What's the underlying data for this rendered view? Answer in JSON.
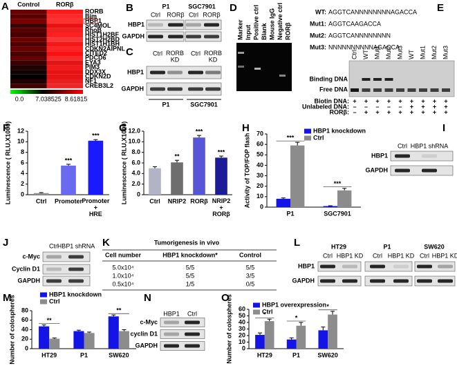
{
  "panel_letters": [
    "A",
    "B",
    "C",
    "D",
    "E",
    "F",
    "G",
    "H",
    "I",
    "J",
    "K",
    "L",
    "M",
    "N",
    "O"
  ],
  "heatmap": {
    "columns": [
      "Control",
      "RORβ"
    ],
    "genes": [
      "RORB",
      "Bim",
      "HBP1",
      "SC4MOL",
      "RhoB",
      "HIST1H2BF",
      "HIST2H2BD",
      "HIST1H1BH",
      "CDKN2AIPNL",
      "CITED2",
      "PDCD6",
      "EYA3",
      "PIM3",
      "DDX3X",
      "CDKN2D",
      "NF1",
      "CREB3L2"
    ],
    "colors": [
      [
        "#6a0000",
        "#ff1a1a"
      ],
      [
        "#5a0000",
        "#ff2a2a"
      ],
      [
        "#7a0000",
        "#ff3030"
      ],
      [
        "#3a0000",
        "#e81010"
      ],
      [
        "#5a0000",
        "#f02020"
      ],
      [
        "#4a0000",
        "#ff2020"
      ],
      [
        "#6a0000",
        "#ff3535"
      ],
      [
        "#500000",
        "#f51818"
      ],
      [
        "#6a0000",
        "#ff2525"
      ],
      [
        "#4a0000",
        "#ff1010"
      ],
      [
        "#600000",
        "#f52a2a"
      ],
      [
        "#3a0000",
        "#e01515"
      ],
      [
        "#200000",
        "#f01a1a"
      ],
      [
        "#100000",
        "#e81010"
      ],
      [
        "#000000",
        "#e51515"
      ],
      [
        "#200000",
        "#e82020"
      ],
      [
        "#400000",
        "#f02525"
      ]
    ],
    "scale_labels": [
      "0.0",
      "7.038525",
      "8.61815"
    ]
  },
  "blots": {
    "B": {
      "headers": [
        "P1",
        "SGC7901"
      ],
      "lanes": [
        "Ctrl",
        "RORβ",
        "Ctrl",
        "RORβ"
      ],
      "rows": [
        "HBP1",
        "GAPDH"
      ]
    },
    "C": {
      "lanes": [
        "Ctrl",
        "RORB\nKD",
        "Ctrl",
        "RORB\nKD"
      ],
      "rows": [
        "HBP1",
        "GAPDH"
      ],
      "footers": [
        "P1",
        "SGC7901"
      ]
    },
    "I": {
      "lanes": [
        "Ctrl",
        "HBP1 shRNA"
      ],
      "rows": [
        "HBP1",
        "GAPDH"
      ]
    },
    "J": {
      "lanes": [
        "Ctrl",
        "HBP1 shRNA"
      ],
      "rows": [
        "c-Myc",
        "Cyclin D1",
        "GAPDH"
      ]
    },
    "L": {
      "headers": [
        "HT29",
        "P1",
        "SW620"
      ],
      "lanes": [
        "Ctrl",
        "HBP1 KD",
        "Ctrl",
        "HBP1 KD",
        "Ctrl",
        "HBP1 KD"
      ],
      "rows": [
        "HBP1",
        "GAPDH"
      ]
    },
    "N": {
      "lanes": [
        "HBP1",
        "Ctrl"
      ],
      "rows": [
        "c-Myc",
        "cyclin D1",
        "GAPDH"
      ]
    }
  },
  "gel_D": {
    "lanes": [
      "Marker",
      "Input",
      "Positive ctrl",
      "Blank",
      "Mouse IgG",
      "Negative ctrl",
      "RORβ"
    ]
  },
  "emsa_E": {
    "probes": [
      {
        "name": "WT:",
        "sequence": "AGGTCANNNNNNNNAGACCA"
      },
      {
        "name": "Mut1:",
        "sequence": "AGGTCAAGACCA"
      },
      {
        "name": "Mut2:",
        "sequence": "AGGTCANNNNNNNN"
      },
      {
        "name": "Mut3:",
        "sequence": "NNNNNNNNNNAGACCA"
      }
    ],
    "lanes": [
      "Ctrl",
      "WT",
      "Mut1",
      "Mut2",
      "Mut3",
      "WT",
      "Mut1",
      "Mut2",
      "Mut3"
    ],
    "bands": [
      "Binding DNA",
      "Free DNA"
    ],
    "conditions": [
      {
        "label": "Biotin DNA:",
        "signs": [
          "+",
          "+",
          "+",
          "+",
          "+",
          "+",
          "+",
          "+",
          "+"
        ]
      },
      {
        "label": "Unlabeled DNA:",
        "signs": [
          "–",
          "–",
          "–",
          "–",
          "–",
          "+",
          "+",
          "+",
          "+"
        ]
      },
      {
        "label": "RORβ:",
        "signs": [
          "–",
          "+",
          "+",
          "+",
          "+",
          "+",
          "+",
          "+",
          "+"
        ]
      }
    ]
  },
  "table_K": {
    "title": "Tumorigenesis in vivo",
    "header": [
      "Cell number",
      "HBP1 knockdown*",
      "Control"
    ],
    "rows": [
      [
        "5.0x10⁴",
        "5/5",
        "5/5"
      ],
      [
        "1.0x10⁴",
        "5/5",
        "3/5"
      ],
      [
        "0.5x10⁴",
        "1/5",
        "0/5"
      ]
    ]
  },
  "chart_data": [
    {
      "type": "bar",
      "ylabel": "Luminescence ( RLU,X1000)",
      "categories": [
        "Ctrl",
        "Promoter",
        "Promoter\n+\nHRE"
      ],
      "values": [
        0.3,
        5.5,
        10.2
      ],
      "errors": [
        0.1,
        0.25,
        0.2
      ],
      "colors": [
        "#8f8f8f",
        "#6a6af0",
        "#1a1aff"
      ],
      "annotations": [
        null,
        "***",
        "***"
      ],
      "ylim": [
        0,
        12
      ],
      "yticks": [
        0,
        2,
        4,
        6,
        8,
        10,
        12
      ]
    },
    {
      "type": "bar",
      "ylabel": "Luminescence ( RLU,X1000)",
      "categories": [
        "Ctrl",
        "NRIP2",
        "RORβ",
        "NRIP2\n+\nRORβ"
      ],
      "values": [
        5.0,
        6.1,
        10.8,
        7.0
      ],
      "errors": [
        0.3,
        0.4,
        0.4,
        0.3
      ],
      "colors": [
        "#b3b3c6",
        "#6e6e6e",
        "#5656d6",
        "#1c1c96"
      ],
      "annotations": [
        null,
        "**",
        "***",
        "***"
      ],
      "ylim": [
        0,
        12
      ],
      "yticks": [
        0,
        {
          "value": 2,
          "label": "2.0"
        },
        {
          "value": 4,
          "label": "4.0"
        },
        {
          "value": 6,
          "label": "6.0"
        },
        {
          "value": 8,
          "label": "8.0"
        },
        {
          "value": 10,
          "label": "10.0"
        },
        {
          "value": 12,
          "label": "12.0"
        }
      ]
    },
    {
      "type": "grouped_bar",
      "ylabel": "Activity of TOP/FOP flash",
      "categories": [
        "P1",
        "SGC7901"
      ],
      "series": [
        {
          "name": "HBP1 knockdown",
          "color": "#1414e6",
          "values": [
            8,
            1
          ],
          "errors": [
            0.8,
            0.3
          ]
        },
        {
          "name": "Ctrl",
          "color": "#8c8c8c",
          "values": [
            59,
            16
          ],
          "errors": [
            3,
            2
          ]
        }
      ],
      "annotations": [
        "***",
        "***"
      ],
      "ylim": [
        0,
        70
      ],
      "yticks": [
        0,
        10,
        20,
        30,
        40,
        50,
        60,
        70
      ]
    },
    {
      "type": "grouped_bar",
      "ylabel": "Number of colospheres",
      "categories": [
        "HT29",
        "P1",
        "SW620"
      ],
      "series": [
        {
          "name": "HBP1 knockdown",
          "color": "#1414e6",
          "values": [
            47,
            37,
            68
          ],
          "errors": [
            3,
            2,
            3
          ]
        },
        {
          "name": "Ctrl",
          "color": "#8c8c8c",
          "values": [
            21,
            33,
            37
          ],
          "errors": [
            1.5,
            2,
            3
          ]
        }
      ],
      "annotations": [
        "**",
        null,
        "**"
      ],
      "ylim": [
        0,
        80
      ],
      "yticks": [
        0,
        20,
        40,
        60,
        80
      ]
    },
    {
      "type": "grouped_bar",
      "ylabel": "Number of colospheres",
      "categories": [
        "HT29",
        "P1",
        "SW620"
      ],
      "series": [
        {
          "name": "HBP1 overexpression",
          "color": "#1414e6",
          "values": [
            21,
            14,
            28
          ],
          "errors": [
            3,
            2.5,
            5
          ]
        },
        {
          "name": "Ctrl",
          "color": "#8c8c8c",
          "values": [
            42,
            35,
            52
          ],
          "errors": [
            3,
            5,
            5
          ]
        }
      ],
      "annotations": [
        "*",
        "*",
        "*"
      ],
      "ylim": [
        0,
        60
      ],
      "yticks": [
        0,
        10,
        20,
        30,
        40,
        50,
        60
      ]
    }
  ]
}
